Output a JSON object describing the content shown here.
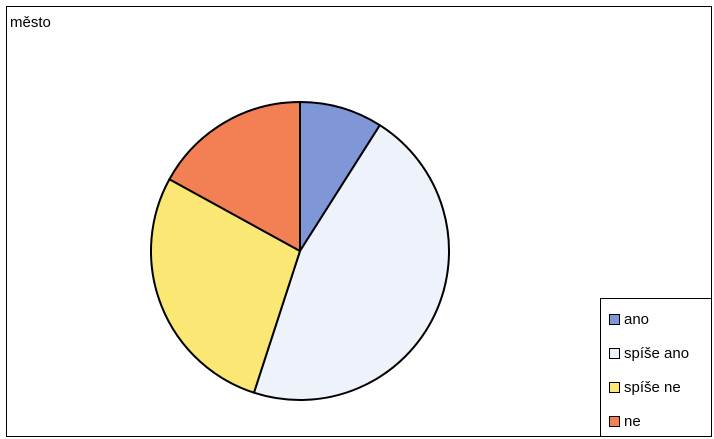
{
  "chart_data": {
    "type": "pie",
    "title": "město",
    "legend_position": "bottom-right",
    "categories": [
      "ano",
      "spíše ano",
      "spíše ne",
      "ne"
    ],
    "values": [
      9,
      46,
      28,
      17
    ],
    "colors": [
      "#7f97d6",
      "#eef3fb",
      "#fbe773",
      "#f37f55"
    ]
  }
}
